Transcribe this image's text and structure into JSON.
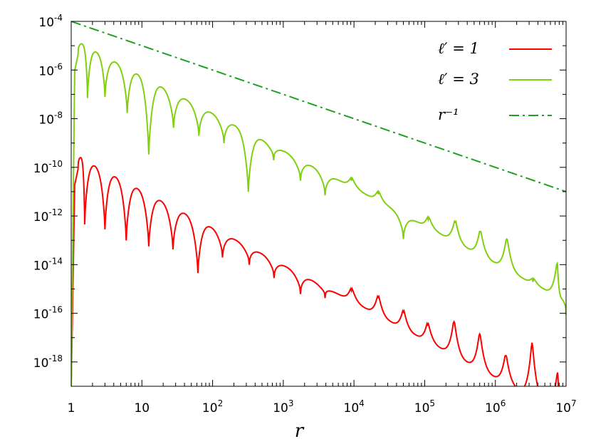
{
  "chart_data": {
    "type": "line",
    "xlabel": "r",
    "ylabel": "",
    "x_scale": "log",
    "y_scale": "log",
    "xlim": [
      1,
      10000000
    ],
    "ylim": [
      1e-19,
      0.0001
    ],
    "x_ticks": [
      {
        "value": 1,
        "base": "1",
        "exp": ""
      },
      {
        "value": 10,
        "base": "10",
        "exp": ""
      },
      {
        "value": 100,
        "base": "10",
        "exp": "2"
      },
      {
        "value": 1000,
        "base": "10",
        "exp": "3"
      },
      {
        "value": 10000,
        "base": "10",
        "exp": "4"
      },
      {
        "value": 100000,
        "base": "10",
        "exp": "5"
      },
      {
        "value": 1000000,
        "base": "10",
        "exp": "6"
      },
      {
        "value": 10000000,
        "base": "10",
        "exp": "7"
      }
    ],
    "y_ticks": [
      {
        "value": 0.0001,
        "base": "10",
        "exp": "-4"
      },
      {
        "value": 1e-06,
        "base": "10",
        "exp": "-6"
      },
      {
        "value": 1e-08,
        "base": "10",
        "exp": "-8"
      },
      {
        "value": 1e-10,
        "base": "10",
        "exp": "-10"
      },
      {
        "value": 1e-12,
        "base": "10",
        "exp": "-12"
      },
      {
        "value": 1e-14,
        "base": "10",
        "exp": "-14"
      },
      {
        "value": 1e-16,
        "base": "10",
        "exp": "-16"
      },
      {
        "value": 1e-18,
        "base": "10",
        "exp": "-18"
      }
    ],
    "grid": false,
    "legend_position": "top-right",
    "series": [
      {
        "name": "ℓ′ = 1",
        "color": "#ff0000",
        "style": "solid",
        "envelope": {
          "r_start": 1.25,
          "y_start": 3e-10,
          "slope": -1.55
        },
        "minima": [
          {
            "r": 1.55,
            "y": 1.6e-12
          },
          {
            "r": 3.0,
            "y": 1e-12
          },
          {
            "r": 6.0,
            "y": 3.5e-13
          },
          {
            "r": 12.5,
            "y": 2e-13
          },
          {
            "r": 27.5,
            "y": 1.5e-13
          },
          {
            "r": 62,
            "y": 1.6e-14
          },
          {
            "r": 138,
            "y": 7e-14
          },
          {
            "r": 330,
            "y": 3.5e-14
          },
          {
            "r": 740,
            "y": 1e-14
          },
          {
            "r": 1750,
            "y": 2.2e-15
          },
          {
            "r": 3900,
            "y": 1.5e-15
          },
          {
            "r": 9200,
            "y": 3e-15
          },
          {
            "r": 22000,
            "y": 1.6e-15
          },
          {
            "r": 50000,
            "y": 4e-16
          },
          {
            "r": 110000,
            "y": 1.2e-16
          },
          {
            "r": 260000,
            "y": 1.6e-16
          },
          {
            "r": 600000,
            "y": 5e-17
          },
          {
            "r": 1400000,
            "y": 6.5e-18
          },
          {
            "r": 3300000,
            "y": 2.2e-17
          },
          {
            "r": 7600000,
            "y": 1.3e-18
          }
        ]
      },
      {
        "name": "ℓ′ = 3",
        "color": "#80d010",
        "style": "solid",
        "envelope": {
          "r_start": 1.25,
          "y_start": 1.5e-05,
          "slope": -1.55
        },
        "minima": [
          {
            "r": 1.7,
            "y": 2.5e-07
          },
          {
            "r": 3.0,
            "y": 2.8e-07
          },
          {
            "r": 6.2,
            "y": 6e-08
          },
          {
            "r": 12.5,
            "y": 1.2e-09
          },
          {
            "r": 28,
            "y": 1.5e-08
          },
          {
            "r": 64,
            "y": 7e-09
          },
          {
            "r": 145,
            "y": 3.5e-09
          },
          {
            "r": 320,
            "y": 3.5e-11
          },
          {
            "r": 730,
            "y": 7e-10
          },
          {
            "r": 1750,
            "y": 1e-10
          },
          {
            "r": 3900,
            "y": 2.5e-11
          },
          {
            "r": 9200,
            "y": 1e-10
          },
          {
            "r": 22000,
            "y": 2.8e-11
          },
          {
            "r": 50000,
            "y": 4e-13
          },
          {
            "r": 112000,
            "y": 2.5e-12
          },
          {
            "r": 270000,
            "y": 2e-12
          },
          {
            "r": 610000,
            "y": 8e-13
          },
          {
            "r": 1450000,
            "y": 4e-13
          },
          {
            "r": 3400000,
            "y": 7e-15
          },
          {
            "r": 7500000,
            "y": 4e-14
          }
        ]
      },
      {
        "name": "r⁻¹",
        "color": "#20a020",
        "style": "dash-dot",
        "x": [
          1,
          10000000
        ],
        "y": [
          0.0001,
          1e-11
        ]
      }
    ]
  }
}
